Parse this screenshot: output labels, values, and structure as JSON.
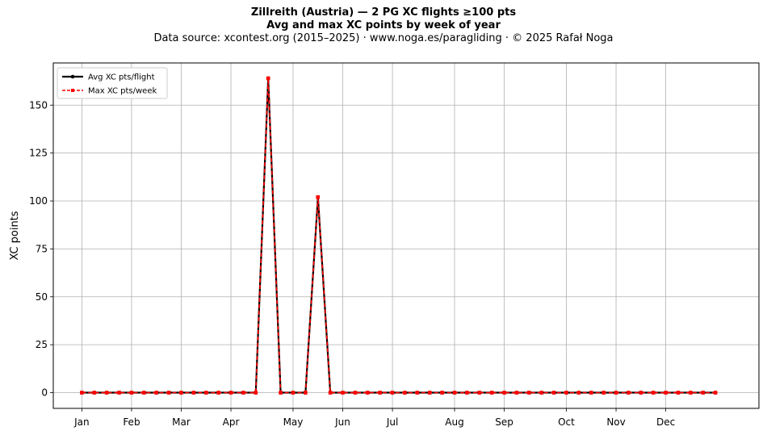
{
  "chart_data": {
    "type": "line",
    "title": "Zillreith (Austria)  —  2 PG XC flights ≥100 pts",
    "subtitle": "Avg and max XC points by week of year",
    "source_note": "Data source: xcontest.org (2015–2025)  ·  www.noga.es/paragliding  ·  © 2025 Rafał Noga",
    "xlabel": "",
    "ylabel": "XC points",
    "x_weeks": [
      1,
      2,
      3,
      4,
      5,
      6,
      7,
      8,
      9,
      10,
      11,
      12,
      13,
      14,
      15,
      16,
      17,
      18,
      19,
      20,
      21,
      22,
      23,
      24,
      25,
      26,
      27,
      28,
      29,
      30,
      31,
      32,
      33,
      34,
      35,
      36,
      37,
      38,
      39,
      40,
      41,
      42,
      43,
      44,
      45,
      46,
      47,
      48,
      49,
      50,
      51,
      52
    ],
    "month_ticks": [
      {
        "label": "Jan",
        "week": 1
      },
      {
        "label": "Feb",
        "week": 5
      },
      {
        "label": "Mar",
        "week": 9
      },
      {
        "label": "Apr",
        "week": 13
      },
      {
        "label": "May",
        "week": 18
      },
      {
        "label": "Jun",
        "week": 22
      },
      {
        "label": "Jul",
        "week": 26
      },
      {
        "label": "Aug",
        "week": 31
      },
      {
        "label": "Sep",
        "week": 35
      },
      {
        "label": "Oct",
        "week": 40
      },
      {
        "label": "Nov",
        "week": 44
      },
      {
        "label": "Dec",
        "week": 48
      }
    ],
    "yticks": [
      0,
      25,
      50,
      75,
      100,
      125,
      150
    ],
    "xlim": [
      -1.3,
      55.5
    ],
    "ylim": [
      -8.2,
      172
    ],
    "grid": true,
    "legend_position": "upper-left",
    "series": [
      {
        "name": "Avg XC pts/flight",
        "color": "#000000",
        "style": "solid",
        "marker": "circle",
        "values": [
          0,
          0,
          0,
          0,
          0,
          0,
          0,
          0,
          0,
          0,
          0,
          0,
          0,
          0,
          0,
          164,
          0,
          0,
          0,
          102,
          0,
          0,
          0,
          0,
          0,
          0,
          0,
          0,
          0,
          0,
          0,
          0,
          0,
          0,
          0,
          0,
          0,
          0,
          0,
          0,
          0,
          0,
          0,
          0,
          0,
          0,
          0,
          0,
          0,
          0,
          0,
          0
        ]
      },
      {
        "name": "Max XC pts/week",
        "color": "#ff0000",
        "style": "dashed",
        "marker": "square",
        "values": [
          0,
          0,
          0,
          0,
          0,
          0,
          0,
          0,
          0,
          0,
          0,
          0,
          0,
          0,
          0,
          164,
          0,
          0,
          0,
          102,
          0,
          0,
          0,
          0,
          0,
          0,
          0,
          0,
          0,
          0,
          0,
          0,
          0,
          0,
          0,
          0,
          0,
          0,
          0,
          0,
          0,
          0,
          0,
          0,
          0,
          0,
          0,
          0,
          0,
          0,
          0,
          0
        ]
      }
    ]
  }
}
